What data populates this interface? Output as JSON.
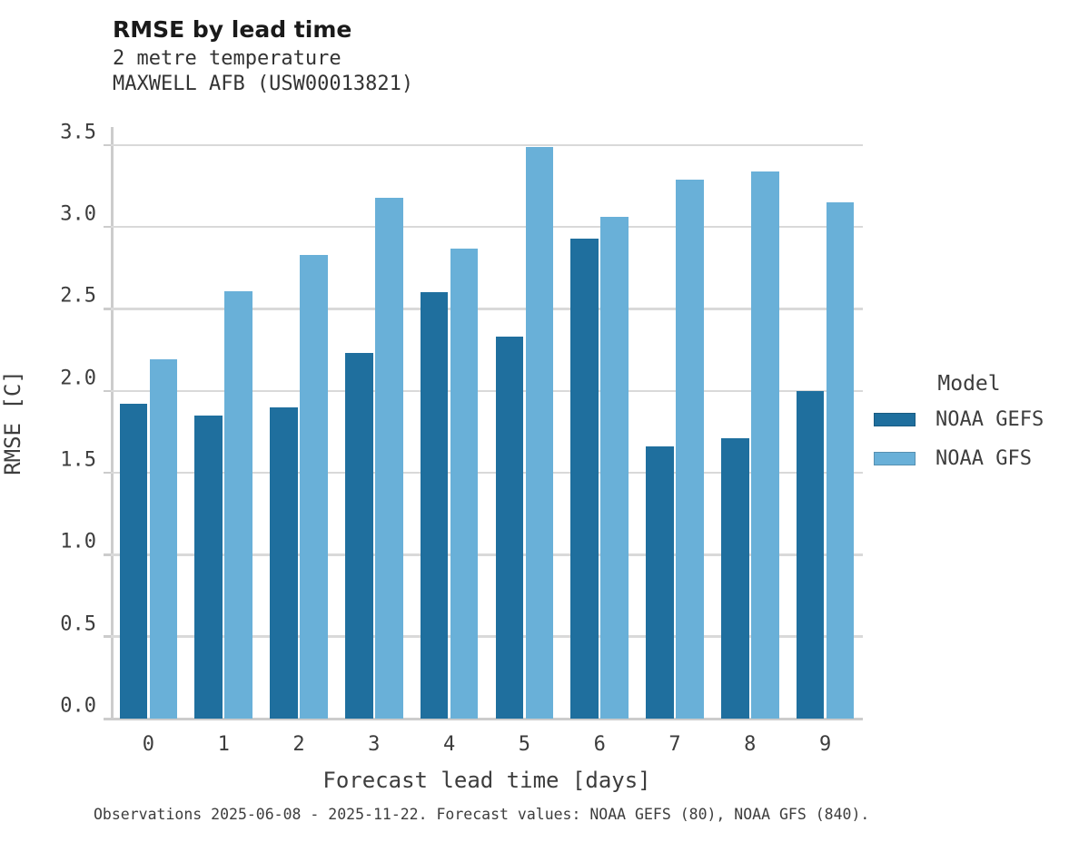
{
  "header": {
    "title": "RMSE by lead time",
    "subtitle_line1": "2 metre temperature",
    "subtitle_line2": "MAXWELL AFB (USW00013821)"
  },
  "axes": {
    "xlabel": "Forecast lead time [days]",
    "ylabel": "RMSE [C]"
  },
  "chart_data": {
    "type": "bar",
    "title": "RMSE by lead time",
    "subtitle": [
      "2 metre temperature",
      "MAXWELL AFB (USW00013821)"
    ],
    "categories": [
      "0",
      "1",
      "2",
      "3",
      "4",
      "5",
      "6",
      "7",
      "8",
      "9"
    ],
    "series": [
      {
        "name": "NOAA GEFS",
        "color": "#1f6f9e",
        "values": [
          1.92,
          1.85,
          1.9,
          2.23,
          2.6,
          2.33,
          2.93,
          1.66,
          1.71,
          2.0
        ]
      },
      {
        "name": "NOAA GFS",
        "color": "#69b0d8",
        "values": [
          2.19,
          2.61,
          2.83,
          3.18,
          2.87,
          3.49,
          3.06,
          3.29,
          3.34,
          3.15
        ]
      }
    ],
    "xlabel": "Forecast lead time [days]",
    "ylabel": "RMSE [C]",
    "ylim": [
      0,
      3.61
    ],
    "yticks": [
      0.0,
      0.5,
      1.0,
      1.5,
      2.0,
      2.5,
      3.0,
      3.5
    ],
    "ytick_labels": [
      "0.0",
      "0.5",
      "1.0",
      "1.5",
      "2.0",
      "2.5",
      "3.0",
      "3.5"
    ],
    "grid": "horizontal",
    "legend_position": "right"
  },
  "legend": {
    "title": "Model",
    "entries": [
      {
        "label": "NOAA GEFS",
        "color": "#1f6f9e"
      },
      {
        "label": "NOAA GFS",
        "color": "#69b0d8"
      }
    ]
  },
  "footer": {
    "text": "Observations 2025-06-08 - 2025-11-22. Forecast values: NOAA GEFS (80), NOAA GFS (840)."
  },
  "colors": {
    "gefs_bar": "#1f6f9e",
    "gfs_bar": "#69b0d8",
    "gridline": "#d9d9d9",
    "axis_line": "#cccccc",
    "tick_text": "#3d3d3d",
    "title_text": "#1a1a1a"
  }
}
